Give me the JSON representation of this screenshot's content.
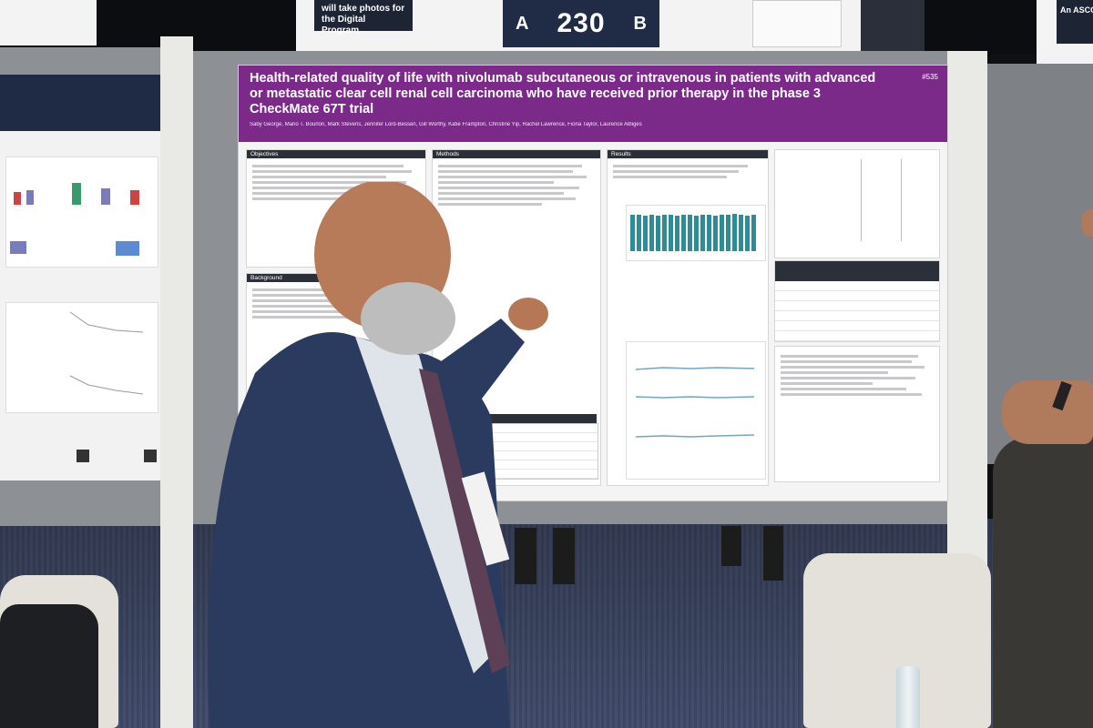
{
  "scene": {
    "description_signs": {
      "top_left_board_text": "will take photos for the Digital Program.",
      "board_number": "230",
      "board_side_left": "A",
      "board_side_right": "B",
      "top_right_sign_text": "An ASCO"
    },
    "poster": {
      "title": "Health-related quality of life with nivolumab subcutaneous or intravenous in patients with advanced or metastatic clear cell renal cell carcinoma who have received prior therapy in the phase 3 CheckMate 67T trial",
      "authors": "Saby George, Mario T. Bourlon, Mark Stevens, Jennifer Lord-Bessen, Gill Worthy, Katie Frampton, Christine Yip, Rachel Lawrence, Fiona Taylor, Laurence Albiges",
      "poster_id": "#535",
      "section_objectives": "Objectives",
      "section_background": "Background",
      "section_methods": "Methods",
      "section_results": "Results"
    },
    "colors": {
      "poster_header": "#7b2a8a",
      "bar_teal": "#2e8c95",
      "table_header": "#2b2f3a"
    }
  }
}
